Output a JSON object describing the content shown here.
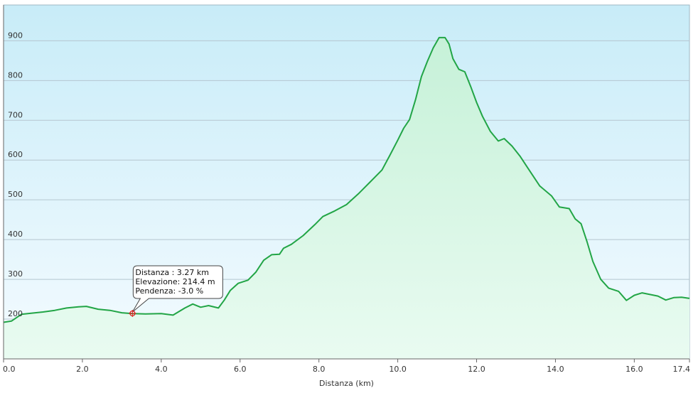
{
  "colors": {
    "line": "#22a546",
    "area_top": "#c6f1d8",
    "area_bottom": "#e9fbf1",
    "bg_top": "#c8ecf8",
    "bg_bottom": "#f4fbff",
    "grid": "#b5c6d0",
    "axis": "#666666",
    "tooltip_border": "#444444",
    "marker": "#e02020"
  },
  "chart_data": {
    "type": "area",
    "title": "",
    "xlabel": "Distanza  (km)",
    "ylabel": "",
    "xlim": [
      0,
      17.4
    ],
    "ylim": [
      100,
      990
    ],
    "grid": true,
    "legend": "none",
    "x_ticks": [
      "0.0",
      "2.0",
      "4.0",
      "6.0",
      "8.0",
      "10.0",
      "12.0",
      "14.0",
      "16.0",
      "17.4"
    ],
    "x_tick_values": [
      0,
      2,
      4,
      6,
      8,
      10,
      12,
      14,
      16,
      17.4
    ],
    "y_ticks": [
      "200",
      "300",
      "400",
      "500",
      "600",
      "700",
      "800",
      "900"
    ],
    "y_tick_values": [
      200,
      300,
      400,
      500,
      600,
      700,
      800,
      900
    ],
    "series": [
      {
        "x": [
          0.0,
          0.2,
          0.45,
          0.7,
          1.0,
          1.3,
          1.6,
          1.9,
          2.1,
          2.4,
          2.7,
          3.0,
          3.27,
          3.6,
          4.0,
          4.3,
          4.6,
          4.8,
          5.0,
          5.2,
          5.45,
          5.6,
          5.75,
          5.95,
          6.2,
          6.4,
          6.6,
          6.8,
          7.0,
          7.1,
          7.3,
          7.6,
          7.9,
          8.1,
          8.4,
          8.7,
          9.0,
          9.3,
          9.6,
          9.8,
          10.0,
          10.15,
          10.3,
          10.45,
          10.6,
          10.75,
          10.9,
          11.05,
          11.2,
          11.3,
          11.4,
          11.55,
          11.7,
          11.85,
          12.0,
          12.15,
          12.35,
          12.55,
          12.7,
          12.9,
          13.1,
          13.3,
          13.6,
          13.9,
          14.1,
          14.35,
          14.5,
          14.65,
          14.8,
          14.95,
          15.15,
          15.35,
          15.6,
          15.8,
          16.0,
          16.2,
          16.4,
          16.6,
          16.8,
          17.0,
          17.2,
          17.4
        ],
        "y": [
          192,
          195,
          212,
          215,
          218,
          222,
          228,
          231,
          232,
          225,
          222,
          216,
          214,
          213,
          214,
          210,
          228,
          238,
          230,
          234,
          228,
          248,
          272,
          290,
          298,
          318,
          348,
          362,
          363,
          378,
          388,
          410,
          438,
          458,
          472,
          488,
          515,
          545,
          575,
          612,
          650,
          680,
          702,
          752,
          810,
          848,
          882,
          908,
          908,
          892,
          855,
          828,
          822,
          785,
          745,
          710,
          672,
          648,
          654,
          635,
          610,
          580,
          535,
          510,
          482,
          478,
          452,
          440,
          395,
          345,
          300,
          278,
          270,
          247,
          260,
          266,
          262,
          258,
          248,
          254,
          255,
          252
        ]
      }
    ],
    "tooltip": {
      "point_x": 3.27,
      "point_y": 214.4,
      "lines": [
        "Distanza : 3.27 km",
        "Elevazione: 214.4 m",
        "Pendenza: -3.0 %"
      ]
    }
  }
}
